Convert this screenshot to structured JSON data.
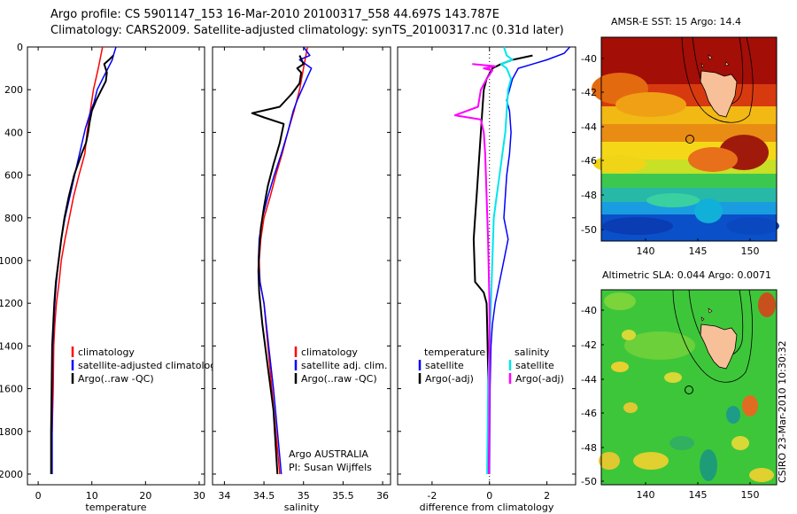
{
  "title_line1": "Argo profile: CS 5901147_153 16-Mar-2010 20100317_558 44.697S 143.787E",
  "title_line2": "Climatology: CARS2009. Satellite-adjusted climatology: synTS_20100317.nc (0.31d later)",
  "credit": "CSIRO 23-Mar-2010 10:30:32",
  "colors": {
    "climatology": "#ff0000",
    "satellite": "#0000ff",
    "argo": "#000000",
    "satellite_diff": "#00e5ee",
    "argo_diff": "#ff00ff"
  },
  "chart_data": [
    {
      "type": "line",
      "id": "temperature",
      "xlabel": "temperature",
      "xlim": [
        -2,
        31
      ],
      "ylim": [
        2050,
        0
      ],
      "xticks": [
        "0",
        "10",
        "20",
        "30"
      ],
      "xtick_values": [
        0,
        10,
        20,
        30
      ],
      "yticks": [
        "0",
        "200",
        "400",
        "600",
        "800",
        "1000",
        "1200",
        "1400",
        "1600",
        "1800",
        "2000"
      ],
      "ytick_values": [
        0,
        200,
        400,
        600,
        800,
        1000,
        1200,
        1400,
        1600,
        1800,
        2000
      ],
      "legend": [
        "climatology",
        "satellite-adjusted climatology",
        "Argo(..raw -QC)"
      ],
      "series": [
        {
          "name": "climatology",
          "color": "#ff0000",
          "width": 1.5,
          "x": [
            12.0,
            11.2,
            10.3,
            9.7,
            9.1,
            8.7,
            7.6,
            6.6,
            5.8,
            5.0,
            4.3,
            3.9,
            3.4,
            3.1,
            2.9,
            2.8,
            2.6
          ],
          "y": [
            0,
            100,
            200,
            300,
            400,
            500,
            600,
            700,
            800,
            900,
            1000,
            1100,
            1200,
            1300,
            1400,
            1600,
            1800
          ]
        },
        {
          "name": "satellite-adjusted climatology",
          "color": "#0000ff",
          "width": 1.5,
          "x": [
            14.5,
            14.0,
            13.8,
            13.0,
            12.0,
            11.0,
            10.4,
            9.8,
            8.8,
            7.7,
            6.8,
            5.9,
            5.0,
            4.3,
            3.8,
            3.4,
            3.1,
            2.9,
            2.7,
            2.6,
            2.6
          ],
          "y": [
            0,
            40,
            60,
            100,
            150,
            200,
            260,
            300,
            380,
            500,
            600,
            700,
            800,
            900,
            1000,
            1100,
            1200,
            1300,
            1400,
            1600,
            2000
          ]
        },
        {
          "name": "Argo(..raw -QC)",
          "color": "#000000",
          "width": 2,
          "x": [
            14.0,
            13.2,
            12.3,
            12.8,
            12.6,
            11.8,
            10.8,
            10.0,
            9.6,
            9.3,
            8.9,
            8.1,
            6.7,
            5.7,
            4.9,
            4.3,
            3.8,
            3.3,
            3.0,
            2.8,
            2.6,
            2.5,
            2.4,
            2.4
          ],
          "y": [
            40,
            60,
            80,
            120,
            160,
            200,
            250,
            300,
            350,
            400,
            450,
            500,
            600,
            700,
            800,
            900,
            1000,
            1100,
            1200,
            1300,
            1400,
            1600,
            1800,
            2000
          ]
        }
      ]
    },
    {
      "type": "line",
      "id": "salinity",
      "xlabel": "salinity",
      "xlim": [
        33.85,
        36.1
      ],
      "ylim": [
        2050,
        0
      ],
      "xticks": [
        "34",
        "34.5",
        "35",
        "35.5",
        "36"
      ],
      "xtick_values": [
        34,
        34.5,
        35,
        35.5,
        36
      ],
      "legend": [
        "climatology",
        "satellite adj. clim.",
        "Argo(..raw -QC)"
      ],
      "annotation": [
        "Argo AUSTRALIA",
        "PI: Susan Wijffels"
      ],
      "series": [
        {
          "name": "climatology",
          "color": "#ff0000",
          "width": 1.5,
          "x": [
            35.05,
            35.0,
            34.95,
            34.88,
            34.8,
            34.73,
            34.65,
            34.58,
            34.5,
            34.46,
            34.44,
            34.45,
            34.5,
            34.55,
            34.6,
            34.65,
            34.7
          ],
          "y": [
            0,
            100,
            200,
            300,
            400,
            500,
            600,
            700,
            800,
            900,
            1000,
            1100,
            1200,
            1400,
            1600,
            1800,
            2000
          ]
        },
        {
          "name": "satellite adj. clim.",
          "color": "#0000ff",
          "width": 1.5,
          "x": [
            35.0,
            35.08,
            34.95,
            35.1,
            35.05,
            34.98,
            34.92,
            34.87,
            34.8,
            34.72,
            34.63,
            34.55,
            34.48,
            34.44,
            34.43,
            34.45,
            34.5,
            34.56,
            34.62,
            34.67,
            34.72
          ],
          "y": [
            0,
            40,
            60,
            100,
            140,
            200,
            250,
            300,
            400,
            500,
            600,
            700,
            800,
            900,
            1000,
            1100,
            1200,
            1400,
            1600,
            1800,
            2000
          ]
        },
        {
          "name": "Argo(..raw -QC)",
          "color": "#000000",
          "width": 2,
          "x": [
            34.95,
            35.0,
            34.92,
            34.97,
            34.95,
            34.85,
            34.7,
            34.35,
            34.5,
            34.75,
            34.7,
            34.62,
            34.55,
            34.5,
            34.46,
            34.44,
            34.43,
            34.44,
            34.48,
            34.55,
            34.62,
            34.67
          ],
          "y": [
            40,
            80,
            100,
            120,
            170,
            220,
            280,
            310,
            330,
            360,
            450,
            550,
            650,
            750,
            850,
            950,
            1050,
            1150,
            1300,
            1500,
            1700,
            2000
          ]
        }
      ]
    },
    {
      "type": "line",
      "id": "difference",
      "xlabel": "difference from climatology",
      "xlim": [
        -3.2,
        3.0
      ],
      "ylim": [
        2050,
        0
      ],
      "xticks": [
        "-2",
        "0",
        "2"
      ],
      "xtick_values": [
        -2,
        0,
        2
      ],
      "legend": [
        "temperature",
        "satellite",
        "Argo(-adj)",
        "salinity",
        "satellite",
        "Argo(-adj)"
      ],
      "series": [
        {
          "name": "temperature satellite",
          "color": "#0000ff",
          "width": 1.5,
          "x": [
            2.8,
            2.6,
            2.0,
            1.5,
            1.0,
            0.8,
            0.7,
            0.6,
            0.7,
            0.75,
            0.7,
            0.6,
            0.55,
            0.5,
            0.65,
            0.5,
            0.35,
            0.2,
            0.1,
            0.05,
            0.02,
            0.0
          ],
          "y": [
            0,
            30,
            60,
            80,
            100,
            150,
            200,
            250,
            300,
            400,
            500,
            600,
            700,
            800,
            900,
            1000,
            1100,
            1200,
            1300,
            1400,
            1600,
            2000
          ]
        },
        {
          "name": "temperature Argo(-adj)",
          "color": "#000000",
          "width": 2,
          "x": [
            1.5,
            0.8,
            0.4,
            0.1,
            -0.1,
            -0.2,
            -0.25,
            -0.3,
            -0.35,
            -0.4,
            -0.45,
            -0.5,
            -0.55,
            -0.5,
            -0.2,
            -0.1,
            -0.08,
            -0.05,
            -0.03,
            -0.02
          ],
          "y": [
            40,
            60,
            80,
            100,
            150,
            200,
            300,
            400,
            500,
            600,
            700,
            800,
            900,
            1100,
            1150,
            1200,
            1300,
            1500,
            1700,
            2000
          ]
        },
        {
          "name": "salinity satellite",
          "color": "#00e5ee",
          "width": 2,
          "x": [
            0.5,
            0.6,
            0.8,
            0.4,
            0.6,
            0.75,
            0.65,
            0.6,
            0.55,
            0.45,
            0.35,
            0.25,
            0.15,
            0.1,
            0.05,
            0.0,
            -0.05,
            -0.08
          ],
          "y": [
            0,
            40,
            60,
            80,
            100,
            150,
            200,
            300,
            400,
            500,
            600,
            700,
            800,
            1000,
            1200,
            1400,
            1600,
            2000
          ]
        },
        {
          "name": "salinity Argo(-adj)",
          "color": "#ff00ff",
          "width": 2,
          "x": [
            -0.6,
            0.2,
            -0.2,
            0.1,
            -0.1,
            -0.3,
            -0.4,
            -1.2,
            -0.3,
            -0.2,
            -0.15,
            -0.1,
            -0.05,
            0.0,
            0.0,
            -0.02
          ],
          "y": [
            80,
            90,
            100,
            110,
            150,
            200,
            280,
            320,
            340,
            400,
            500,
            700,
            900,
            1200,
            1600,
            2000
          ]
        }
      ]
    }
  ],
  "maps": [
    {
      "id": "sst",
      "title": "AMSR-E SST: 15 Argo: 14.4",
      "xticks": [
        "140",
        "145",
        "150"
      ],
      "yticks": [
        "-40",
        "-42",
        "-44",
        "-46",
        "-48",
        "-50"
      ]
    },
    {
      "id": "sla",
      "title": "Altimetric SLA: 0.044 Argo: 0.0071",
      "xticks": [
        "140",
        "145",
        "150"
      ],
      "yticks": [
        "-40",
        "-42",
        "-44",
        "-46",
        "-48",
        "-50"
      ]
    }
  ]
}
